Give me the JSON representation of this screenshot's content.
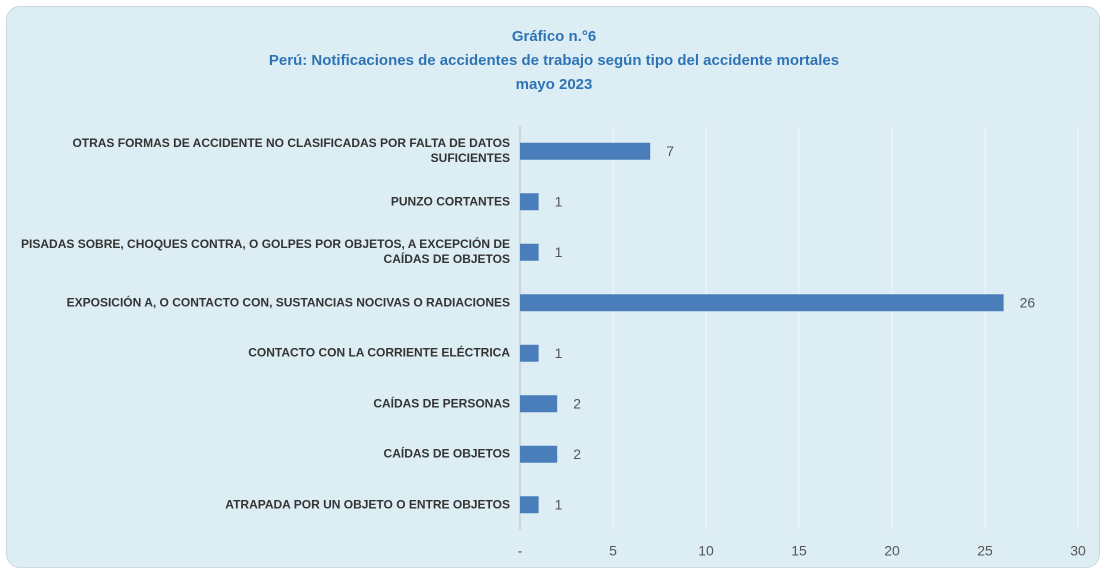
{
  "chart_data": {
    "type": "bar",
    "orientation": "horizontal",
    "title": [
      "Gráfico n.°6",
      "Perú: Notificaciones de accidentes de trabajo  según tipo del accidente mortales",
      "mayo 2023"
    ],
    "categories": [
      "OTRAS FORMAS DE ACCIDENTE NO CLASIFICADAS POR FALTA DE DATOS SUFICIENTES",
      "PUNZO CORTANTES",
      "PISADAS SOBRE, CHOQUES CONTRA, O GOLPES POR OBJETOS, A EXCEPCIÓN DE CAÍDAS DE OBJETOS",
      "EXPOSICIÓN A, O CONTACTO CON, SUSTANCIAS NOCIVAS O RADIACIONES",
      "CONTACTO CON LA CORRIENTE ELÉCTRICA",
      "CAÍDAS DE PERSONAS",
      "CAÍDAS DE OBJETOS",
      "ATRAPADA POR UN OBJETO O ENTRE OBJETOS"
    ],
    "values": [
      7,
      1,
      1,
      26,
      1,
      2,
      2,
      1
    ],
    "color": "#4a7ebb",
    "xlim": [
      0,
      30
    ],
    "xticks": [
      {
        "value": 0,
        "label": "-"
      },
      5,
      10,
      15,
      20,
      25,
      30
    ],
    "grid": true
  }
}
